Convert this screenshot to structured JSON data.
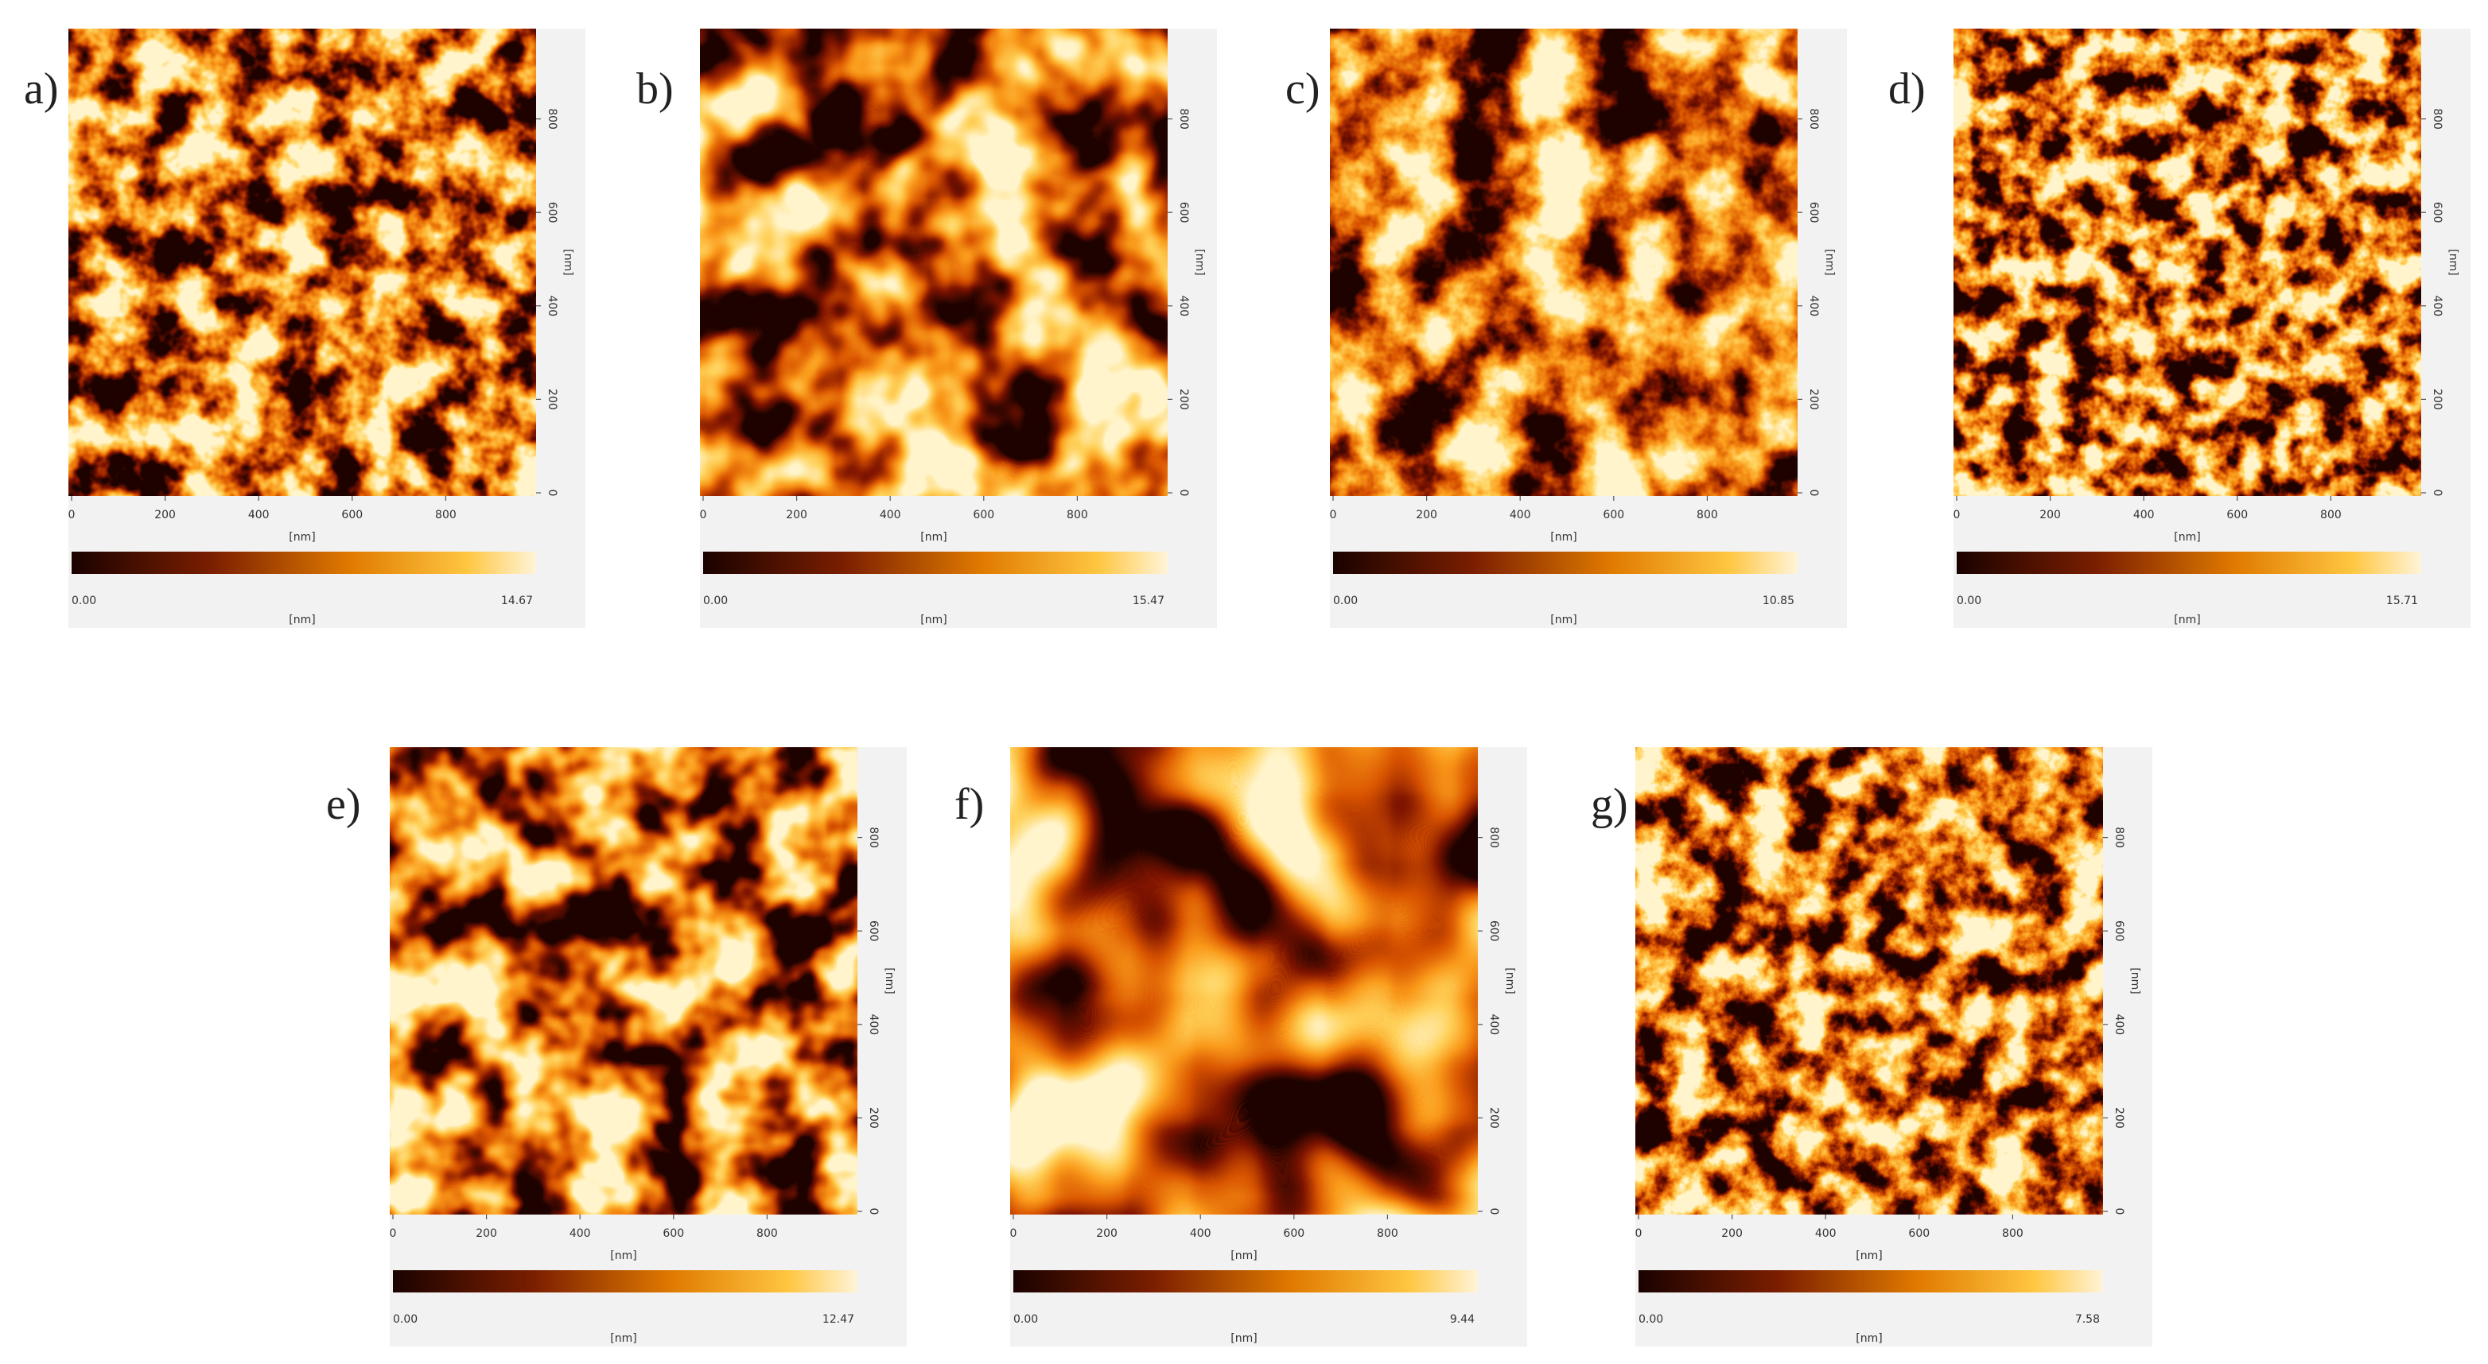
{
  "axis": {
    "ticks": [
      0,
      200,
      400,
      600,
      800
    ],
    "unit": "[nm]"
  },
  "panels": [
    {
      "label": "a)",
      "scale_min": "0.00",
      "scale_max": "14.67"
    },
    {
      "label": "b)",
      "scale_min": "0.00",
      "scale_max": "15.47"
    },
    {
      "label": "c)",
      "scale_min": "0.00",
      "scale_max": "10.85"
    },
    {
      "label": "d)",
      "scale_min": "0.00",
      "scale_max": "15.71"
    },
    {
      "label": "e)",
      "scale_min": "0.00",
      "scale_max": "12.47"
    },
    {
      "label": "f)",
      "scale_min": "0.00",
      "scale_max": "9.44"
    },
    {
      "label": "g)",
      "scale_min": "0.00",
      "scale_max": "7.58"
    }
  ]
}
